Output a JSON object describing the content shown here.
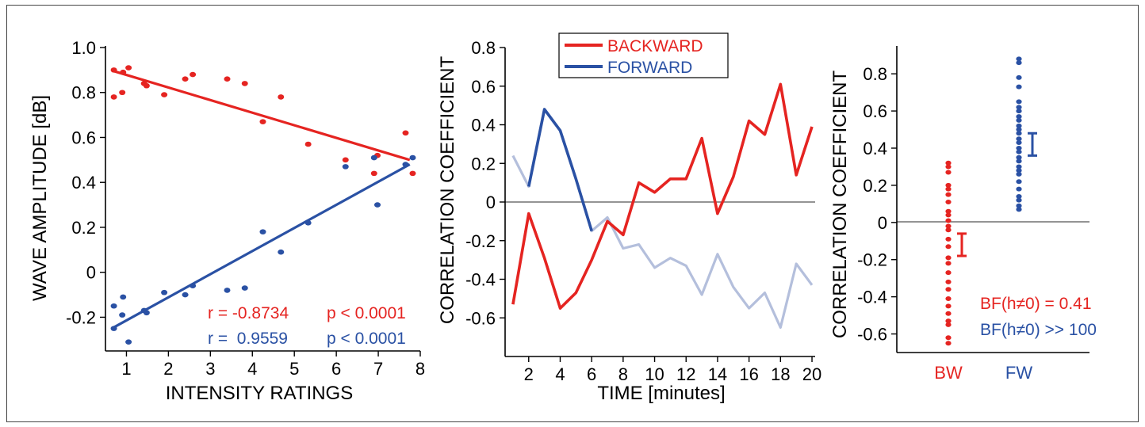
{
  "colors": {
    "red": "#e52421",
    "blue": "#2a51a4",
    "light_blue": "#b4bfdc",
    "axis": "#000000",
    "zero_line": "#555555"
  },
  "chart_data": [
    {
      "type": "scatter",
      "xlabel": "INTENSITY RATINGS",
      "ylabel": "WAVE AMPLITUDE [dB]",
      "xlim": [
        0.5,
        8
      ],
      "ylim": [
        -0.35,
        1.0
      ],
      "xticks": [
        1,
        2,
        3,
        4,
        5,
        6,
        7,
        8
      ],
      "yticks": [
        -0.2,
        0,
        0.2,
        0.4,
        0.6,
        0.8,
        1.0
      ],
      "ytick_labels": [
        "-0.2",
        "0",
        "0.2",
        "0.4",
        "0.6",
        "0.8",
        "1.0"
      ],
      "series": [
        {
          "color": "red",
          "x": [
            0.7,
            0.7,
            0.92,
            0.9,
            1.05,
            1.42,
            1.48,
            1.9,
            2.4,
            2.58,
            3.4,
            3.82,
            4.25,
            4.68,
            5.33,
            6.22,
            6.9,
            6.98,
            7.65,
            7.82
          ],
          "y": [
            0.9,
            0.78,
            0.89,
            0.8,
            0.91,
            0.84,
            0.83,
            0.79,
            0.86,
            0.88,
            0.86,
            0.84,
            0.67,
            0.78,
            0.57,
            0.5,
            0.44,
            0.52,
            0.62,
            0.44
          ],
          "fit": [
            [
              0.7,
              0.895
            ],
            [
              7.75,
              0.5
            ]
          ]
        },
        {
          "color": "blue",
          "x": [
            0.7,
            0.7,
            0.92,
            0.9,
            1.05,
            1.42,
            1.48,
            1.9,
            2.4,
            2.58,
            3.4,
            3.82,
            4.25,
            4.68,
            5.33,
            6.22,
            6.9,
            6.98,
            7.65,
            7.82
          ],
          "y": [
            -0.15,
            -0.25,
            -0.11,
            -0.19,
            -0.31,
            -0.17,
            -0.18,
            -0.09,
            -0.1,
            -0.06,
            -0.08,
            -0.07,
            0.18,
            0.09,
            0.22,
            0.47,
            0.51,
            0.3,
            0.48,
            0.51
          ],
          "fit": [
            [
              0.7,
              -0.245
            ],
            [
              7.75,
              0.48
            ]
          ]
        }
      ],
      "annotations": [
        {
          "color": "red",
          "r_text": "r = -0.8734",
          "p_text": "p < 0.0001"
        },
        {
          "color": "blue",
          "r_text": "r =  0.9559",
          "p_text": "p < 0.0001"
        }
      ]
    },
    {
      "type": "line",
      "xlabel": "TIME [minutes]",
      "ylabel": "CORRELATION COEFFICIENT",
      "xlim": [
        0.5,
        20.2
      ],
      "ylim": [
        -0.8,
        0.8
      ],
      "xticks": [
        2,
        4,
        6,
        8,
        10,
        12,
        14,
        16,
        18,
        20
      ],
      "yticks": [
        -0.6,
        -0.4,
        -0.2,
        0,
        0.2,
        0.4,
        0.6,
        0.8
      ],
      "ytick_labels": [
        "-0.6",
        "-0.4",
        "-0.2",
        "0",
        "0.2",
        "0.4",
        "0.6",
        "0.8"
      ],
      "x": [
        1,
        2,
        3,
        4,
        5,
        6,
        7,
        8,
        9,
        10,
        11,
        12,
        13,
        14,
        15,
        16,
        17,
        18,
        19,
        20
      ],
      "legend": {
        "position": "top-center",
        "entries": [
          {
            "label": "BACKWARD",
            "color": "red"
          },
          {
            "label": "FORWARD",
            "color": "blue"
          }
        ]
      },
      "series": [
        {
          "name": "BACKWARD",
          "color": "red",
          "values": [
            -0.53,
            -0.06,
            -0.29,
            -0.55,
            -0.47,
            -0.3,
            -0.1,
            -0.17,
            0.1,
            0.05,
            0.12,
            0.12,
            0.33,
            -0.06,
            0.13,
            0.42,
            0.35,
            0.61,
            0.14,
            0.39
          ]
        },
        {
          "name": "FORWARD",
          "color": "light_blue",
          "values": [
            0.24,
            0.08,
            0.48,
            0.37,
            0.12,
            -0.15,
            -0.08,
            -0.24,
            -0.22,
            -0.34,
            -0.29,
            -0.33,
            -0.48,
            -0.27,
            -0.44,
            -0.55,
            -0.47,
            -0.65,
            -0.32,
            -0.43
          ],
          "highlight_color": "blue",
          "highlight_range": [
            2,
            6
          ]
        }
      ]
    },
    {
      "type": "scatter",
      "xlabel": "",
      "ylabel": "CORRELATION COEFFICIENT",
      "ylim": [
        -0.7,
        0.95
      ],
      "yticks": [
        -0.6,
        -0.4,
        -0.2,
        0,
        0.2,
        0.4,
        0.6,
        0.8
      ],
      "ytick_labels": [
        "-0.6",
        "-0.4",
        "-0.2",
        "0",
        "0.2",
        "0.4",
        "0.6",
        "0.8"
      ],
      "categories": [
        "BW",
        "FW"
      ],
      "series": [
        {
          "category": "BW",
          "color": "red",
          "values": [
            0.32,
            0.3,
            0.27,
            0.2,
            0.18,
            0.15,
            0.11,
            0.06,
            0.04,
            0.01,
            -0.02,
            -0.04,
            -0.09,
            -0.13,
            -0.19,
            -0.22,
            -0.27,
            -0.32,
            -0.36,
            -0.41,
            -0.45,
            -0.49,
            -0.53,
            -0.55,
            -0.62,
            -0.65
          ],
          "error_bar": [
            -0.18,
            -0.06
          ]
        },
        {
          "category": "FW",
          "color": "blue",
          "values": [
            0.88,
            0.86,
            0.78,
            0.73,
            0.65,
            0.62,
            0.6,
            0.57,
            0.55,
            0.52,
            0.5,
            0.48,
            0.45,
            0.43,
            0.4,
            0.38,
            0.35,
            0.33,
            0.3,
            0.28,
            0.26,
            0.22,
            0.18,
            0.14,
            0.12,
            0.09,
            0.07
          ],
          "error_bar": [
            0.36,
            0.48
          ]
        }
      ],
      "annotations": [
        {
          "color": "red",
          "text": "BF(h≠0) = 0.41"
        },
        {
          "color": "blue",
          "text": "BF(h≠0) >> 100"
        }
      ]
    }
  ]
}
